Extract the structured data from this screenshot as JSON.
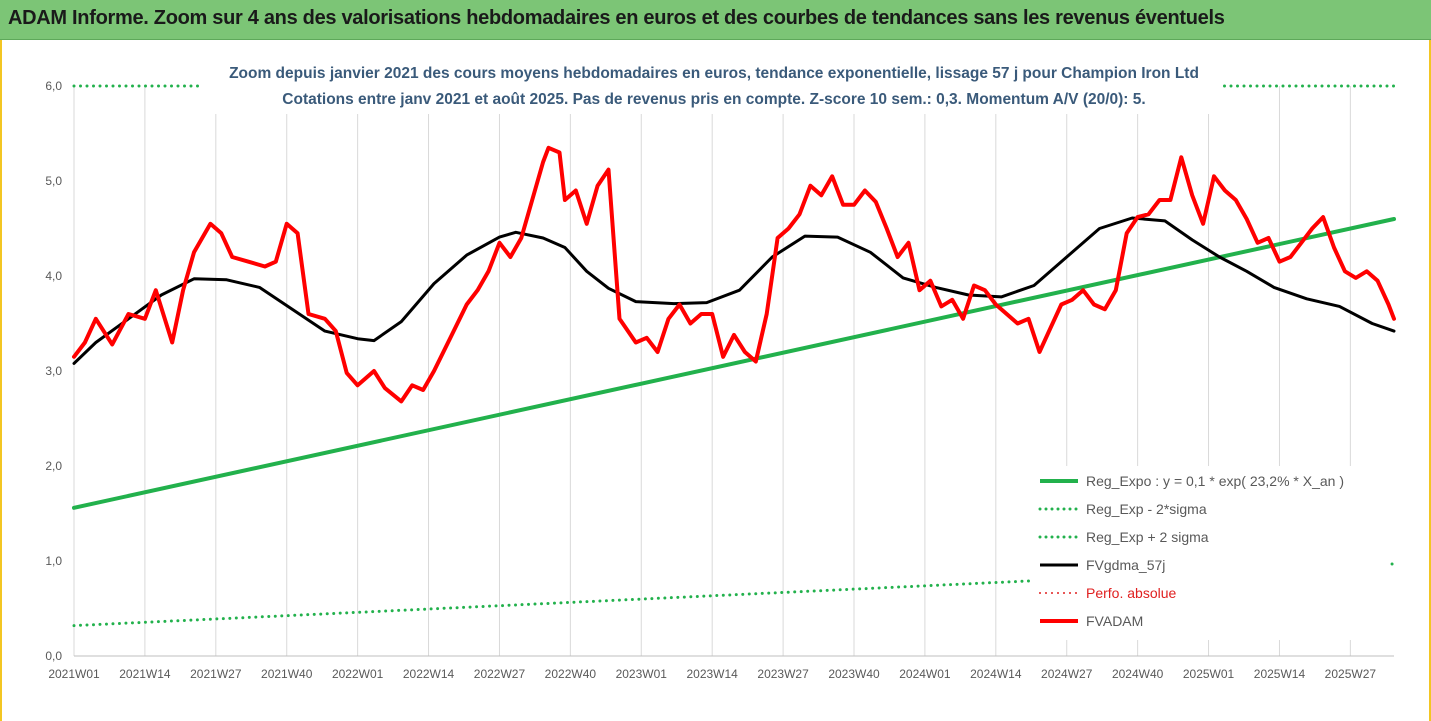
{
  "banner": {
    "title": "ADAM Informe. Zoom sur 4 ans des valorisations hebdomadaires en euros et des courbes de tendances sans les revenus éventuels"
  },
  "chart_data": {
    "type": "line",
    "title": "Zoom depuis janvier 2021 des cours moyens hebdomadaires en euros, tendance exponentielle, lissage 57 j pour Champion Iron Ltd",
    "subtitle": "Cotations entre janv 2021 et août 2025.  Pas de revenus pris en compte. Z-score 10 sem.: 0,3. Momentum A/V (20/0): 5.",
    "xlabel": "",
    "ylabel": "",
    "ylim": [
      0,
      6
    ],
    "y_ticks": [
      "0,0",
      "1,0",
      "2,0",
      "3,0",
      "4,0",
      "5,0",
      "6,0"
    ],
    "x_ticks": [
      "2021W01",
      "2021W14",
      "2021W27",
      "2021W40",
      "2022W01",
      "2022W14",
      "2022W27",
      "2022W40",
      "2023W01",
      "2023W14",
      "2023W27",
      "2023W40",
      "2024W01",
      "2024W14",
      "2024W27",
      "2024W40",
      "2025W01",
      "2025W14",
      "2025W27"
    ],
    "x_range_weeks": [
      0,
      242
    ],
    "grid": "vertical",
    "legend_position": "bottom-right",
    "series": [
      {
        "name": "Reg_Expo : y = 0,1 * exp( 23,2% *  X_an )",
        "color": "#22b14c",
        "style": "solid",
        "width": 4,
        "points": [
          [
            0,
            1.56
          ],
          [
            242,
            4.6
          ]
        ]
      },
      {
        "name": "Reg_Exp - 2*sigma",
        "color": "#22b14c",
        "style": "dotted",
        "width": 3,
        "points": [
          [
            0,
            0.32
          ],
          [
            242,
            0.97
          ]
        ]
      },
      {
        "name": "Reg_Exp + 2 sigma",
        "color": "#22b14c",
        "style": "dotted",
        "width": 3,
        "points": [
          [
            0,
            6.0
          ],
          [
            242,
            6.0
          ]
        ]
      },
      {
        "name": "FVgdma_57j",
        "color": "#000000",
        "style": "solid",
        "width": 3,
        "points": [
          [
            0,
            3.08
          ],
          [
            4,
            3.3
          ],
          [
            10,
            3.55
          ],
          [
            16,
            3.8
          ],
          [
            22,
            3.97
          ],
          [
            28,
            3.96
          ],
          [
            34,
            3.88
          ],
          [
            40,
            3.65
          ],
          [
            46,
            3.42
          ],
          [
            52,
            3.34
          ],
          [
            55,
            3.32
          ],
          [
            60,
            3.52
          ],
          [
            66,
            3.92
          ],
          [
            72,
            4.22
          ],
          [
            78,
            4.41
          ],
          [
            81,
            4.46
          ],
          [
            86,
            4.4
          ],
          [
            90,
            4.3
          ],
          [
            94,
            4.05
          ],
          [
            98,
            3.87
          ],
          [
            103,
            3.73
          ],
          [
            110,
            3.71
          ],
          [
            116,
            3.72
          ],
          [
            122,
            3.85
          ],
          [
            128,
            4.2
          ],
          [
            134,
            4.42
          ],
          [
            140,
            4.41
          ],
          [
            146,
            4.25
          ],
          [
            152,
            3.98
          ],
          [
            158,
            3.88
          ],
          [
            164,
            3.8
          ],
          [
            170,
            3.78
          ],
          [
            176,
            3.9
          ],
          [
            182,
            4.2
          ],
          [
            188,
            4.5
          ],
          [
            194,
            4.61
          ],
          [
            200,
            4.58
          ],
          [
            205,
            4.38
          ],
          [
            210,
            4.2
          ],
          [
            215,
            4.05
          ],
          [
            220,
            3.88
          ],
          [
            226,
            3.76
          ],
          [
            232,
            3.68
          ],
          [
            238,
            3.5
          ],
          [
            242,
            3.42
          ]
        ]
      },
      {
        "name": "Perfo. absolue",
        "color": "#e02020",
        "style": "dotted",
        "width": 2,
        "points": []
      },
      {
        "name": "FVADAM",
        "color": "#ff0000",
        "style": "solid",
        "width": 4,
        "points": [
          [
            0,
            3.15
          ],
          [
            2,
            3.3
          ],
          [
            4,
            3.55
          ],
          [
            7,
            3.28
          ],
          [
            10,
            3.6
          ],
          [
            13,
            3.55
          ],
          [
            15,
            3.85
          ],
          [
            18,
            3.3
          ],
          [
            20,
            3.85
          ],
          [
            22,
            4.25
          ],
          [
            25,
            4.55
          ],
          [
            27,
            4.45
          ],
          [
            29,
            4.2
          ],
          [
            32,
            4.15
          ],
          [
            35,
            4.1
          ],
          [
            37,
            4.15
          ],
          [
            39,
            4.55
          ],
          [
            41,
            4.45
          ],
          [
            43,
            3.6
          ],
          [
            46,
            3.55
          ],
          [
            48,
            3.42
          ],
          [
            50,
            2.98
          ],
          [
            52,
            2.85
          ],
          [
            55,
            3.0
          ],
          [
            57,
            2.82
          ],
          [
            60,
            2.68
          ],
          [
            62,
            2.85
          ],
          [
            64,
            2.8
          ],
          [
            66,
            3.0
          ],
          [
            69,
            3.35
          ],
          [
            72,
            3.7
          ],
          [
            74,
            3.85
          ],
          [
            76,
            4.05
          ],
          [
            78,
            4.35
          ],
          [
            80,
            4.2
          ],
          [
            82,
            4.4
          ],
          [
            84,
            4.8
          ],
          [
            86,
            5.2
          ],
          [
            87,
            5.35
          ],
          [
            89,
            5.3
          ],
          [
            90,
            4.8
          ],
          [
            92,
            4.9
          ],
          [
            94,
            4.55
          ],
          [
            96,
            4.95
          ],
          [
            98,
            5.12
          ],
          [
            100,
            3.55
          ],
          [
            103,
            3.3
          ],
          [
            105,
            3.35
          ],
          [
            107,
            3.2
          ],
          [
            109,
            3.55
          ],
          [
            111,
            3.7
          ],
          [
            113,
            3.5
          ],
          [
            115,
            3.6
          ],
          [
            117,
            3.6
          ],
          [
            119,
            3.15
          ],
          [
            121,
            3.38
          ],
          [
            123,
            3.2
          ],
          [
            125,
            3.1
          ],
          [
            127,
            3.6
          ],
          [
            129,
            4.4
          ],
          [
            131,
            4.5
          ],
          [
            133,
            4.65
          ],
          [
            135,
            4.95
          ],
          [
            137,
            4.85
          ],
          [
            139,
            5.05
          ],
          [
            141,
            4.75
          ],
          [
            143,
            4.75
          ],
          [
            145,
            4.9
          ],
          [
            147,
            4.78
          ],
          [
            149,
            4.5
          ],
          [
            151,
            4.2
          ],
          [
            153,
            4.35
          ],
          [
            155,
            3.85
          ],
          [
            157,
            3.95
          ],
          [
            159,
            3.68
          ],
          [
            161,
            3.75
          ],
          [
            163,
            3.55
          ],
          [
            165,
            3.9
          ],
          [
            167,
            3.85
          ],
          [
            169,
            3.7
          ],
          [
            171,
            3.6
          ],
          [
            173,
            3.5
          ],
          [
            175,
            3.55
          ],
          [
            177,
            3.2
          ],
          [
            179,
            3.45
          ],
          [
            181,
            3.7
          ],
          [
            183,
            3.75
          ],
          [
            185,
            3.85
          ],
          [
            187,
            3.7
          ],
          [
            189,
            3.65
          ],
          [
            191,
            3.85
          ],
          [
            193,
            4.45
          ],
          [
            195,
            4.62
          ],
          [
            197,
            4.65
          ],
          [
            199,
            4.8
          ],
          [
            201,
            4.8
          ],
          [
            203,
            5.25
          ],
          [
            205,
            4.85
          ],
          [
            207,
            4.55
          ],
          [
            209,
            5.05
          ],
          [
            211,
            4.9
          ],
          [
            213,
            4.8
          ],
          [
            215,
            4.6
          ],
          [
            217,
            4.35
          ],
          [
            219,
            4.4
          ],
          [
            221,
            4.15
          ],
          [
            223,
            4.2
          ],
          [
            225,
            4.35
          ],
          [
            227,
            4.5
          ],
          [
            229,
            4.62
          ],
          [
            231,
            4.3
          ],
          [
            233,
            4.05
          ],
          [
            235,
            3.98
          ],
          [
            237,
            4.05
          ],
          [
            239,
            3.95
          ],
          [
            241,
            3.7
          ],
          [
            242,
            3.55
          ]
        ]
      }
    ]
  }
}
